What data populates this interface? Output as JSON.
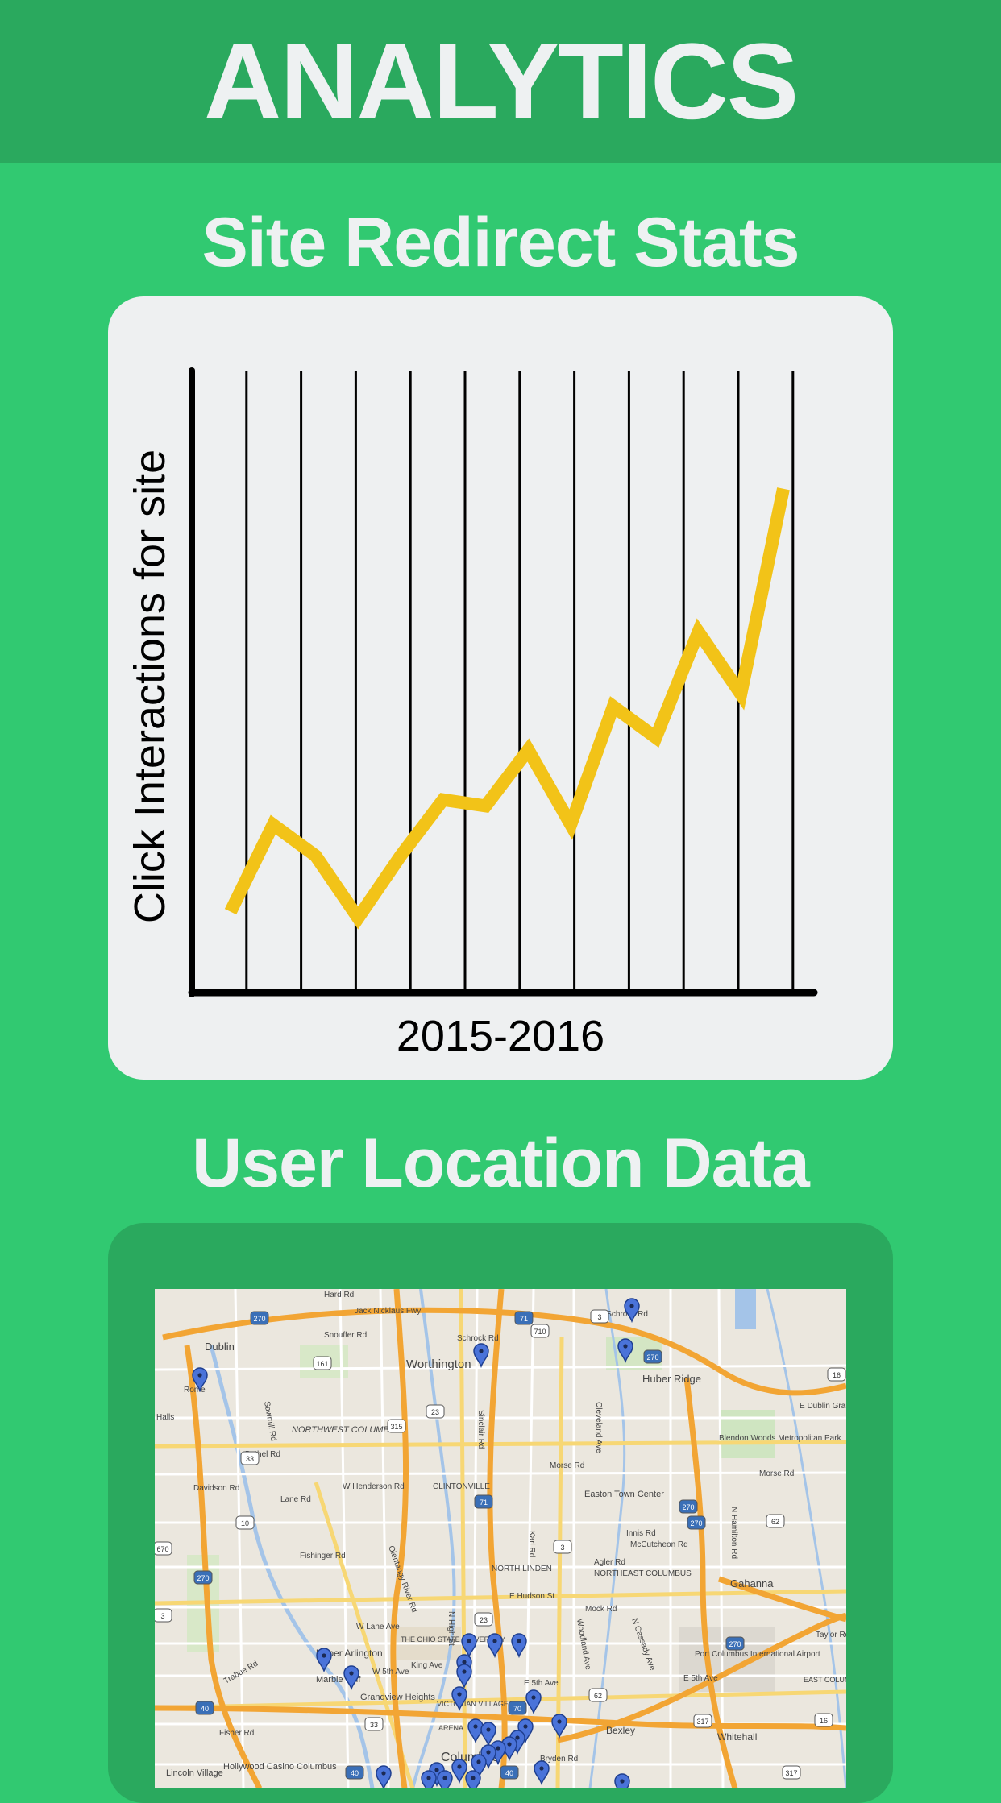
{
  "header": {
    "title": "ANALYTICS"
  },
  "sections": {
    "redirect_title": "Site Redirect Stats",
    "location_title": "User Location Data"
  },
  "chart_data": {
    "type": "line",
    "title": "",
    "xlabel": "2015-2016",
    "ylabel": "Click Interactions for site",
    "grid": true,
    "ylim": [
      0,
      100
    ],
    "series": [
      {
        "values": [
          13,
          27,
          22,
          12,
          22,
          31,
          30,
          39,
          27,
          46,
          41,
          58,
          48,
          81
        ],
        "color": "#f2c318"
      }
    ]
  },
  "map": {
    "labels": {
      "dublin": "Dublin",
      "worthington": "Worthington",
      "huber_ridge": "Huber Ridge",
      "northwest_columbus": "NORTHWEST COLUMBUS",
      "clintonville": "CLINTONVILLE",
      "easton": "Easton Town Center",
      "blendon_woods": "Blendon Woods Metropolitan Park",
      "north_linden": "NORTH LINDEN",
      "northeast_columbus": "NORTHEAST COLUMBUS",
      "gahanna": "Gahanna",
      "osu": "THE OHIO STATE UNIVERSITY",
      "upper_arlington": "Upper Arlington",
      "marble_cliff": "Marble Cliff",
      "grandview": "Grandview Heights",
      "victorian_village": "VICTORIAN VILLAGE",
      "arena": "ARENA",
      "columbus": "Columbus",
      "bexley": "Bexley",
      "whitehall": "Whitehall",
      "airport": "Port Columbus International Airport",
      "east_columbus": "EAST COLUMBUS",
      "hollywood": "Hollywood Casino Columbus",
      "lincoln_village": "Lincoln Village",
      "jack_nicklaus": "Jack Nicklaus Fwy",
      "morse_rd": "Morse Rd",
      "e_dublin_granville": "E Dublin Granville",
      "e_5th_ave": "E 5th Ave",
      "w_5th_ave": "W 5th Ave",
      "king_ave": "King Ave",
      "w_lane_ave": "W Lane Ave",
      "e_hudson": "E Hudson St",
      "mock_rd": "Mock Rd",
      "mccutcheon": "McCutcheon Rd",
      "agler_rd": "Agler Rd",
      "innis_rd": "Innis Rd",
      "w_henderson": "W Henderson Rd",
      "bethel_rd": "Bethel Rd",
      "davidson_rd": "Davidson Rd",
      "fishinger": "Fishinger Rd",
      "hard_rd": "Hard Rd",
      "snouffer": "Snouffer Rd",
      "schrock_rd": "Schrock Rd",
      "w_schrock": "W Schrock Rd",
      "lane_rd": "Lane Rd",
      "taylor_rd": "Taylor Rd",
      "fisher_rd": "Fisher Rd",
      "bryden": "Bryden Rd",
      "e_5th_ave_east": "E 5th Ave",
      "sinclair": "Sinclair Rd",
      "cleveland": "Cleveland Ave",
      "karl_rd": "Karl Rd",
      "n_high": "N High St",
      "olentangy": "Olentangy River Rd",
      "sawmill": "Sawmill Rd",
      "hamilton": "N Hamilton Rd",
      "morse_e": "Morse Rd",
      "n_cassady": "N Cassady Ave",
      "woodland": "Woodland Ave",
      "trabue": "Trabue Rd",
      "rome": "Rome",
      "halls": "Halls"
    },
    "route_shields": [
      "270",
      "71",
      "161",
      "315",
      "23",
      "710",
      "62",
      "16",
      "33",
      "3",
      "10",
      "670",
      "70",
      "40",
      "317"
    ]
  }
}
